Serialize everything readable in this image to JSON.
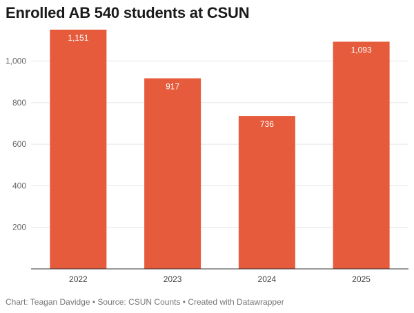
{
  "chart_data": {
    "type": "bar",
    "title": "Enrolled AB 540 students at CSUN",
    "categories": [
      "2022",
      "2023",
      "2024",
      "2025"
    ],
    "values": [
      1151,
      917,
      736,
      1093
    ],
    "data_labels": [
      "1,151",
      "917",
      "736",
      "1,093"
    ],
    "y_ticks": [
      200,
      400,
      600,
      800,
      1000
    ],
    "y_tick_labels": [
      "200",
      "400",
      "600",
      "800",
      "1,000"
    ],
    "ylim": [
      0,
      1151
    ],
    "grid": true,
    "legend": "none",
    "bar_color": "#e55b3c",
    "label_color": "#ffffff"
  },
  "footer": {
    "chart_by": "Chart: Teagan Davidge",
    "separator": " • ",
    "source": "Source: CSUN Counts",
    "created": "Created with Datawrapper"
  }
}
